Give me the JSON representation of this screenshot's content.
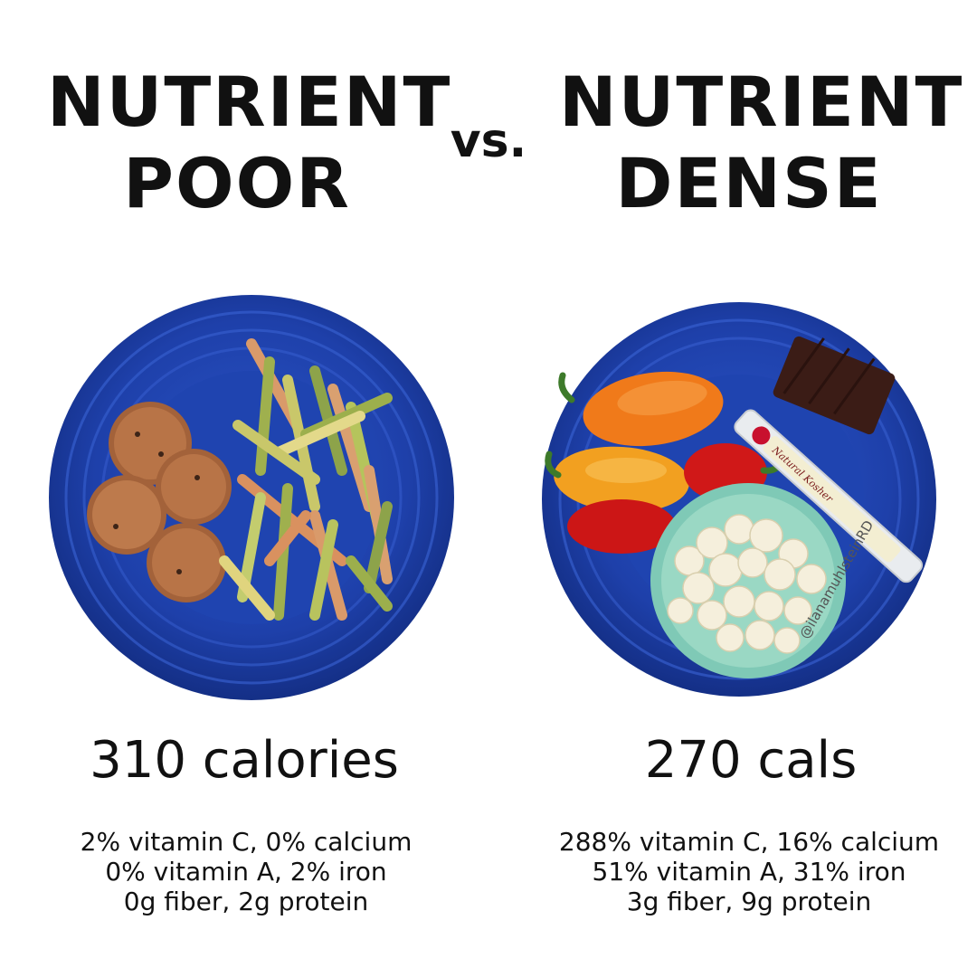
{
  "left": {
    "title_line1": "NUTRIENT",
    "title_line2": "POOR",
    "calories": "310 calories",
    "facts": [
      "2% vitamin C, 0% calcium",
      "0% vitamin A, 2% iron",
      "0g fiber, 2g protein"
    ]
  },
  "vs": "vs.",
  "right": {
    "title_line1": "NUTRIENT",
    "title_line2": "DENSE",
    "calories": "270 cals",
    "facts": [
      "288% vitamin C, 16% calcium",
      "51% vitamin A, 31% iron",
      "3g fiber, 9g protein"
    ]
  },
  "string_cheese_label": "Natural Kosher",
  "watermark": "@ilanamuhlsteinRD",
  "colors": {
    "plate_blue": "#1e3fa8",
    "text": "#111111"
  }
}
